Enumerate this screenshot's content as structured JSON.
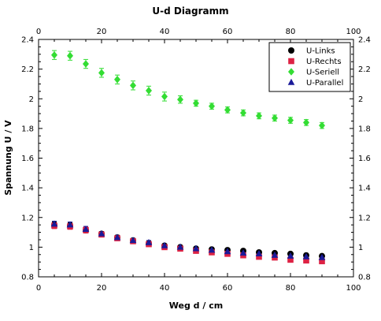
{
  "chart_data": {
    "type": "scatter",
    "title": "U-d Diagramm",
    "xlabel": "Weg d / cm",
    "ylabel": "Spannung U / V",
    "xlim": [
      0,
      100
    ],
    "ylim": [
      0.8,
      2.4
    ],
    "x_ticks": [
      "0",
      "20",
      "40",
      "60",
      "80",
      "100"
    ],
    "y_ticks": [
      "0.8",
      "1",
      "1.2",
      "1.4",
      "1.6",
      "1.8",
      "2",
      "2.2",
      "2.4"
    ],
    "grid": false,
    "legend_position": "top-right",
    "error_bars": true,
    "series": [
      {
        "name": "U-Links",
        "marker": "circle",
        "color": "#000000",
        "x": [
          5,
          10,
          15,
          20,
          25,
          30,
          35,
          40,
          45,
          50,
          55,
          60,
          65,
          70,
          75,
          80,
          85,
          90
        ],
        "y": [
          1.15,
          1.145,
          1.115,
          1.09,
          1.065,
          1.045,
          1.025,
          1.01,
          1.0,
          0.99,
          0.985,
          0.98,
          0.975,
          0.965,
          0.96,
          0.955,
          0.945,
          0.94
        ],
        "err": [
          0.02,
          0.02,
          0.02,
          0.015,
          0.015,
          0.015,
          0.015,
          0.012,
          0.012,
          0.012,
          0.012,
          0.012,
          0.012,
          0.012,
          0.012,
          0.012,
          0.012,
          0.012
        ]
      },
      {
        "name": "U-Rechts",
        "marker": "square",
        "color": "#dd2244",
        "x": [
          5,
          10,
          15,
          20,
          25,
          30,
          35,
          40,
          45,
          50,
          55,
          60,
          65,
          70,
          75,
          80,
          85,
          90
        ],
        "y": [
          1.145,
          1.14,
          1.115,
          1.085,
          1.06,
          1.04,
          1.02,
          1.0,
          0.99,
          0.975,
          0.965,
          0.955,
          0.945,
          0.935,
          0.93,
          0.915,
          0.91,
          0.905
        ],
        "err": [
          0.02,
          0.02,
          0.02,
          0.015,
          0.015,
          0.015,
          0.015,
          0.012,
          0.012,
          0.012,
          0.012,
          0.012,
          0.012,
          0.012,
          0.012,
          0.012,
          0.012,
          0.012
        ]
      },
      {
        "name": "U-Seriell",
        "marker": "diamond",
        "color": "#33dd33",
        "x": [
          5,
          10,
          15,
          20,
          25,
          30,
          35,
          40,
          45,
          50,
          55,
          60,
          65,
          70,
          75,
          80,
          85,
          90
        ],
        "y": [
          2.295,
          2.29,
          2.235,
          2.175,
          2.13,
          2.09,
          2.055,
          2.015,
          1.995,
          1.97,
          1.95,
          1.925,
          1.905,
          1.885,
          1.87,
          1.855,
          1.84,
          1.82
        ],
        "err": [
          0.03,
          0.03,
          0.03,
          0.03,
          0.03,
          0.03,
          0.03,
          0.03,
          0.025,
          0.02,
          0.02,
          0.02,
          0.02,
          0.02,
          0.02,
          0.02,
          0.02,
          0.02
        ]
      },
      {
        "name": "U-Parallel",
        "marker": "triangle",
        "color": "#1a1a99",
        "x": [
          5,
          10,
          15,
          20,
          25,
          30,
          35,
          40,
          45,
          50,
          55,
          60,
          65,
          70,
          75,
          80,
          85,
          90
        ],
        "y": [
          1.155,
          1.15,
          1.12,
          1.09,
          1.065,
          1.045,
          1.03,
          1.01,
          1.0,
          0.99,
          0.98,
          0.97,
          0.96,
          0.955,
          0.945,
          0.94,
          0.935,
          0.93
        ],
        "err": [
          0.02,
          0.02,
          0.02,
          0.015,
          0.015,
          0.015,
          0.015,
          0.012,
          0.012,
          0.012,
          0.012,
          0.012,
          0.012,
          0.012,
          0.012,
          0.012,
          0.012,
          0.012
        ]
      }
    ]
  }
}
